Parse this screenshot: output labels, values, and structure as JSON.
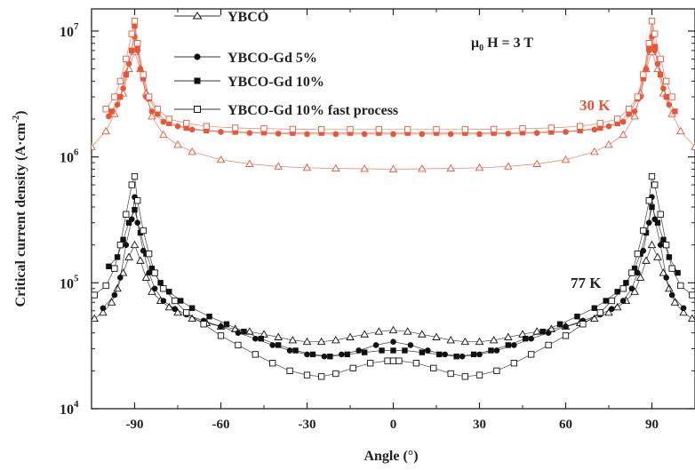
{
  "chart_data": {
    "type": "scatter",
    "title": "",
    "xlabel": "Angle (°)",
    "ylabel": "Critical current density (A·cm",
    "ylabel_sup": "-2",
    "ylabel_close": ")",
    "xlim": [
      -105,
      105
    ],
    "ylim": [
      10000,
      15000000
    ],
    "yscale": "log",
    "xticks": [
      -90,
      -60,
      -30,
      0,
      30,
      60,
      90
    ],
    "yticks": [
      {
        "value": 10000,
        "base": "10",
        "exp": "4"
      },
      {
        "value": 100000,
        "base": "10",
        "exp": "5"
      },
      {
        "value": 1000000,
        "base": "10",
        "exp": "6"
      },
      {
        "value": 10000000,
        "base": "10",
        "exp": "7"
      }
    ],
    "legend_position": "top-left",
    "annotations": {
      "field_mu": "μ",
      "field_sub": "0",
      "field_rest": " H = 3 T",
      "label_30K": "30 K",
      "label_77K": "77 K"
    },
    "colors": {
      "t30": "#e8563a",
      "t77": "#111111"
    },
    "series": [
      {
        "name": "YBCO",
        "marker": "triangle-open",
        "temperature": "30 K",
        "x": [
          -105,
          -100,
          -97,
          -94,
          -92,
          -90,
          -88,
          -86,
          -84,
          -80,
          -75,
          -70,
          -60,
          -50,
          -40,
          -30,
          -20,
          -10,
          0,
          10,
          20,
          30,
          40,
          50,
          60,
          70,
          75,
          80,
          84,
          86,
          88,
          90,
          92,
          94,
          97,
          100,
          105
        ],
        "y": [
          1200000,
          1600000,
          2200000,
          3200000,
          5000000,
          6800000,
          5000000,
          3200000,
          2100000,
          1500000,
          1250000,
          1100000,
          950000,
          880000,
          840000,
          820000,
          810000,
          805000,
          800000,
          805000,
          810000,
          820000,
          840000,
          880000,
          950000,
          1100000,
          1250000,
          1500000,
          2100000,
          3200000,
          5000000,
          6800000,
          5000000,
          3200000,
          2200000,
          1600000,
          1200000
        ]
      },
      {
        "name": "YBCO-Gd 5%",
        "marker": "circle-filled",
        "temperature": "30 K",
        "x": [
          -99,
          -96,
          -94,
          -92,
          -91,
          -90,
          -89,
          -88,
          -86,
          -84,
          -80,
          -75,
          -70,
          -60,
          -50,
          -40,
          -30,
          -20,
          -10,
          0,
          10,
          20,
          30,
          40,
          50,
          60,
          70,
          75,
          80,
          84,
          86,
          88,
          89,
          90,
          91,
          92,
          94,
          96
        ],
        "y": [
          2100000,
          2600000,
          3500000,
          5500000,
          7000000,
          9000000,
          7000000,
          5000000,
          3000000,
          2300000,
          1900000,
          1750000,
          1650000,
          1580000,
          1550000,
          1530000,
          1520000,
          1520000,
          1520000,
          1520000,
          1520000,
          1520000,
          1520000,
          1530000,
          1550000,
          1580000,
          1650000,
          1750000,
          1900000,
          2300000,
          3000000,
          5000000,
          7000000,
          9000000,
          7000000,
          5500000,
          3500000,
          2600000
        ]
      },
      {
        "name": "YBCO-Gd 10%",
        "marker": "square-filled",
        "temperature": "30 K",
        "x": [
          -98,
          -95,
          -93,
          -91,
          -90,
          -89,
          -87,
          -85,
          -82,
          -78,
          -72,
          -65,
          -55,
          -45,
          -35,
          -25,
          -15,
          -5,
          5,
          15,
          25,
          35,
          45,
          55,
          65,
          72,
          78,
          82,
          85,
          87,
          89,
          90,
          91,
          93,
          95,
          98
        ],
        "y": [
          2300000,
          3000000,
          4500000,
          7000000,
          11000000,
          7500000,
          4200000,
          2900000,
          2200000,
          1850000,
          1700000,
          1620000,
          1580000,
          1560000,
          1550000,
          1550000,
          1550000,
          1550000,
          1550000,
          1550000,
          1550000,
          1550000,
          1560000,
          1580000,
          1620000,
          1700000,
          1850000,
          2200000,
          2900000,
          4200000,
          7500000,
          12000000,
          7500000,
          4500000,
          3000000,
          2300000
        ]
      },
      {
        "name": "YBCO-Gd 10% fast process",
        "marker": "square-open",
        "temperature": "30 K",
        "x": [
          -100,
          -97,
          -95,
          -93,
          -91,
          -90,
          -89,
          -87,
          -85,
          -82,
          -78,
          -72,
          -65,
          -55,
          -45,
          -35,
          -25,
          -15,
          -5,
          5,
          15,
          25,
          35,
          45,
          55,
          65,
          72,
          78,
          82,
          85,
          87,
          89,
          90,
          91,
          93,
          95,
          97
        ],
        "y": [
          2400000,
          3000000,
          4000000,
          6000000,
          9500000,
          12000000,
          8000000,
          4500000,
          3000000,
          2400000,
          2000000,
          1850000,
          1750000,
          1700000,
          1680000,
          1660000,
          1650000,
          1650000,
          1650000,
          1650000,
          1650000,
          1650000,
          1660000,
          1680000,
          1700000,
          1750000,
          1850000,
          2000000,
          2400000,
          3000000,
          4500000,
          8000000,
          12000000,
          9500000,
          6000000,
          4000000,
          3000000
        ]
      },
      {
        "name": "YBCO",
        "marker": "triangle-open",
        "temperature": "77 K",
        "x": [
          -104,
          -101,
          -98,
          -96,
          -94,
          -92,
          -90,
          -88,
          -86,
          -84,
          -81,
          -78,
          -75,
          -70,
          -65,
          -60,
          -55,
          -50,
          -45,
          -40,
          -35,
          -30,
          -25,
          -20,
          -15,
          -10,
          -5,
          0,
          5,
          10,
          15,
          20,
          25,
          30,
          35,
          40,
          45,
          50,
          55,
          60,
          65,
          70,
          75,
          78,
          81,
          84,
          86,
          88,
          90,
          92,
          94,
          96,
          98,
          101,
          104
        ],
        "y": [
          52000,
          58000,
          70000,
          90000,
          120000,
          160000,
          200000,
          150000,
          110000,
          85000,
          72000,
          64000,
          58000,
          52000,
          48000,
          45000,
          43000,
          41000,
          39000,
          37000,
          35000,
          34000,
          34000,
          35000,
          37000,
          39000,
          41000,
          42000,
          41000,
          39000,
          37000,
          35000,
          34000,
          34000,
          35000,
          37000,
          39000,
          41000,
          43000,
          45000,
          48000,
          52000,
          58000,
          64000,
          72000,
          85000,
          110000,
          150000,
          200000,
          160000,
          120000,
          90000,
          70000,
          58000,
          52000
        ]
      },
      {
        "name": "YBCO-Gd 5%",
        "marker": "circle-filled",
        "temperature": "77 K",
        "x": [
          -101,
          -97,
          -95,
          -93,
          -91,
          -90,
          -89,
          -87,
          -85,
          -83,
          -80,
          -76,
          -72,
          -66,
          -60,
          -54,
          -48,
          -42,
          -36,
          -30,
          -24,
          -18,
          -12,
          -6,
          0,
          6,
          12,
          18,
          24,
          30,
          36,
          42,
          48,
          54,
          60,
          66,
          72,
          76,
          80,
          83,
          85,
          87,
          89,
          90,
          91,
          93,
          95,
          97,
          101
        ],
        "y": [
          63000,
          80000,
          110000,
          200000,
          320000,
          480000,
          300000,
          180000,
          120000,
          90000,
          72000,
          62000,
          56000,
          50000,
          45000,
          40000,
          36000,
          32000,
          29000,
          27000,
          26000,
          27000,
          29000,
          32000,
          34000,
          32000,
          29000,
          27000,
          26000,
          27000,
          29000,
          32000,
          36000,
          40000,
          45000,
          50000,
          56000,
          62000,
          72000,
          90000,
          120000,
          180000,
          300000,
          480000,
          320000,
          200000,
          110000,
          80000,
          63000
        ]
      },
      {
        "name": "YBCO-Gd 10%",
        "marker": "square-filled",
        "temperature": "77 K",
        "x": [
          -99,
          -96,
          -94,
          -92,
          -90,
          -88,
          -86,
          -84,
          -81,
          -78,
          -74,
          -70,
          -64,
          -58,
          -52,
          -46,
          -40,
          -34,
          -28,
          -22,
          -16,
          -10,
          -4,
          0,
          4,
          10,
          16,
          22,
          28,
          34,
          40,
          46,
          52,
          58,
          64,
          70,
          74,
          78,
          81,
          84,
          86,
          88,
          90,
          92,
          94,
          96,
          99
        ],
        "y": [
          135000,
          160000,
          220000,
          300000,
          380000,
          250000,
          170000,
          130000,
          100000,
          85000,
          72000,
          63000,
          54000,
          47000,
          41000,
          36000,
          32000,
          29000,
          27000,
          26000,
          27000,
          28000,
          29000,
          29000,
          29000,
          28000,
          27000,
          26000,
          27000,
          29000,
          32000,
          36000,
          41000,
          47000,
          54000,
          63000,
          72000,
          85000,
          100000,
          130000,
          170000,
          250000,
          400000,
          300000,
          220000,
          160000,
          120000
        ]
      },
      {
        "name": "YBCO-Gd 10% fast process",
        "marker": "square-open",
        "temperature": "77 K",
        "x": [
          -104,
          -100,
          -97,
          -95,
          -93,
          -91,
          -90,
          -89,
          -87,
          -85,
          -83,
          -80,
          -76,
          -72,
          -66,
          -60,
          -54,
          -48,
          -42,
          -36,
          -30,
          -25,
          -20,
          -14,
          -8,
          -2,
          0,
          2,
          8,
          14,
          20,
          25,
          30,
          36,
          42,
          48,
          54,
          60,
          66,
          72,
          76,
          80,
          83,
          85,
          87,
          89,
          90,
          91,
          93,
          95,
          97,
          100,
          104
        ],
        "y": [
          80000,
          95000,
          130000,
          200000,
          350000,
          600000,
          700000,
          450000,
          260000,
          170000,
          120000,
          90000,
          72000,
          58000,
          47000,
          38000,
          32000,
          27000,
          23000,
          20000,
          18500,
          18000,
          19000,
          21000,
          23000,
          24000,
          24000,
          24000,
          23000,
          21000,
          19000,
          18000,
          18500,
          20000,
          23000,
          27000,
          32000,
          38000,
          47000,
          58000,
          72000,
          90000,
          120000,
          170000,
          260000,
          450000,
          700000,
          600000,
          350000,
          200000,
          130000,
          95000,
          80000
        ]
      }
    ]
  }
}
